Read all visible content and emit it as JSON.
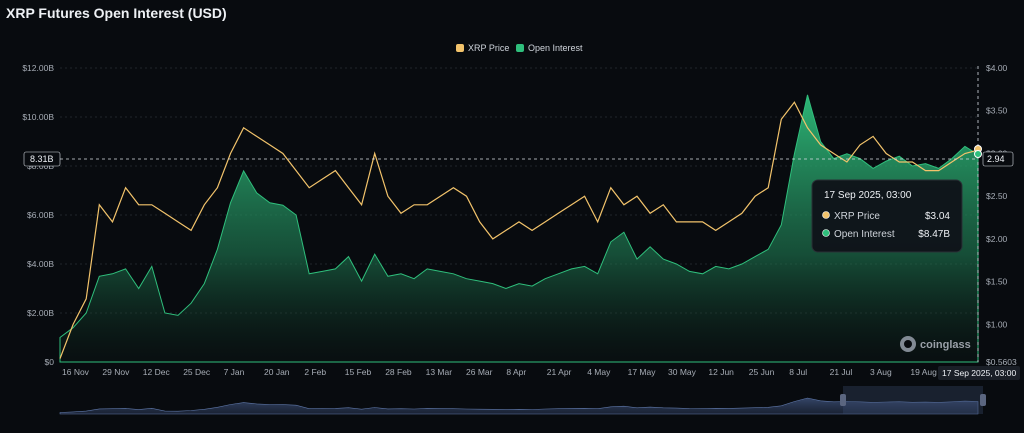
{
  "chart_title": "XRP Futures Open Interest (USD)",
  "legend": [
    {
      "label": "XRP Price",
      "color": "#f2c36b"
    },
    {
      "label": "Open Interest",
      "color": "#2fbf7c"
    }
  ],
  "tooltip": {
    "title": "17 Sep 2025, 03:00",
    "rows": [
      {
        "label": "XRP Price",
        "value": "$3.04",
        "color": "#f2c36b"
      },
      {
        "label": "Open Interest",
        "value": "$8.47B",
        "color": "#2fbf7c"
      }
    ]
  },
  "crosshair": {
    "y_left_label": "8.31B",
    "y_right_label": "2.94",
    "x_label": "17 Sep 2025, 03:00"
  },
  "watermark": "coinglass",
  "colors": {
    "price_line": "#f2c36b",
    "oi_fill_top": "#2fbf7c",
    "grid": "#2a2f36",
    "axis_text": "#a7adb6"
  },
  "chart_data": {
    "type": "area",
    "title": "XRP Futures Open Interest (USD)",
    "x_tick_labels": [
      "16 Nov",
      "29 Nov",
      "12 Dec",
      "25 Dec",
      "7 Jan",
      "20 Jan",
      "2 Feb",
      "15 Feb",
      "28 Feb",
      "13 Mar",
      "26 Mar",
      "8 Apr",
      "21 Apr",
      "4 May",
      "17 May",
      "30 May",
      "12 Jun",
      "25 Jun",
      "8 Jul",
      "21 Jul",
      "3 Aug",
      "19 Aug",
      "1 Se"
    ],
    "y_left": {
      "label": "",
      "ticks": [
        "$0",
        "$2.00B",
        "$4.00B",
        "$6.00B",
        "$8.00B",
        "$10.00B",
        "$12.00B"
      ],
      "ylim": [
        0,
        12
      ]
    },
    "y_right": {
      "label": "",
      "ticks": [
        "$0.5603",
        "$1.00",
        "$1.50",
        "$2.00",
        "$2.50",
        "$3.00",
        "$3.50",
        "$4.00"
      ],
      "ylim": [
        0.5603,
        4.0
      ]
    },
    "x": [
      "16 Nov",
      "20 Nov",
      "25 Nov",
      "29 Nov",
      "3 Dec",
      "8 Dec",
      "12 Dec",
      "16 Dec",
      "21 Dec",
      "25 Dec",
      "29 Dec",
      "3 Jan",
      "7 Jan",
      "11 Jan",
      "16 Jan",
      "20 Jan",
      "24 Jan",
      "29 Jan",
      "2 Feb",
      "6 Feb",
      "11 Feb",
      "15 Feb",
      "19 Feb",
      "24 Feb",
      "28 Feb",
      "4 Mar",
      "9 Mar",
      "13 Mar",
      "17 Mar",
      "22 Mar",
      "26 Mar",
      "30 Mar",
      "4 Apr",
      "8 Apr",
      "12 Apr",
      "17 Apr",
      "21 Apr",
      "25 Apr",
      "30 Apr",
      "4 May",
      "8 May",
      "13 May",
      "17 May",
      "21 May",
      "26 May",
      "30 May",
      "3 Jun",
      "8 Jun",
      "12 Jun",
      "16 Jun",
      "21 Jun",
      "25 Jun",
      "29 Jun",
      "4 Jul",
      "8 Jul",
      "12 Jul",
      "17 Jul",
      "21 Jul",
      "25 Jul",
      "30 Jul",
      "3 Aug",
      "7 Aug",
      "12 Aug",
      "19 Aug",
      "24 Aug",
      "28 Aug",
      "1 Sep",
      "6 Sep",
      "10 Sep",
      "14 Sep",
      "17 Sep"
    ],
    "series": [
      {
        "name": "Open Interest",
        "unit": "USD billions",
        "axis": "left",
        "values": [
          1.0,
          1.4,
          2.0,
          3.5,
          3.6,
          3.8,
          3.0,
          3.9,
          2.0,
          1.9,
          2.4,
          3.2,
          4.6,
          6.5,
          7.8,
          6.9,
          6.5,
          6.4,
          6.0,
          3.6,
          3.7,
          3.8,
          4.3,
          3.3,
          4.4,
          3.5,
          3.6,
          3.4,
          3.8,
          3.7,
          3.6,
          3.4,
          3.3,
          3.2,
          3.0,
          3.2,
          3.1,
          3.4,
          3.6,
          3.8,
          3.9,
          3.6,
          4.9,
          5.3,
          4.2,
          4.7,
          4.2,
          4.0,
          3.7,
          3.6,
          3.9,
          3.8,
          4.0,
          4.3,
          4.6,
          5.6,
          8.5,
          10.9,
          9.0,
          8.3,
          8.5,
          8.3,
          7.9,
          8.2,
          8.4,
          8.0,
          8.1,
          7.9,
          8.3,
          8.8,
          8.47
        ]
      },
      {
        "name": "XRP Price",
        "unit": "USD",
        "axis": "right",
        "values": [
          0.6,
          1.0,
          1.3,
          2.4,
          2.2,
          2.6,
          2.4,
          2.4,
          2.3,
          2.2,
          2.1,
          2.4,
          2.6,
          3.0,
          3.3,
          3.2,
          3.1,
          3.0,
          2.8,
          2.6,
          2.7,
          2.8,
          2.6,
          2.4,
          3.0,
          2.5,
          2.3,
          2.4,
          2.4,
          2.5,
          2.6,
          2.5,
          2.2,
          2.0,
          2.1,
          2.2,
          2.1,
          2.2,
          2.3,
          2.4,
          2.5,
          2.2,
          2.6,
          2.4,
          2.5,
          2.3,
          2.4,
          2.2,
          2.2,
          2.2,
          2.1,
          2.2,
          2.3,
          2.5,
          2.6,
          3.4,
          3.6,
          3.3,
          3.1,
          3.0,
          2.9,
          3.1,
          3.2,
          3.0,
          2.9,
          2.9,
          2.8,
          2.8,
          2.9,
          3.0,
          3.04
        ]
      }
    ],
    "grid": true,
    "legend_position": "top-center"
  }
}
